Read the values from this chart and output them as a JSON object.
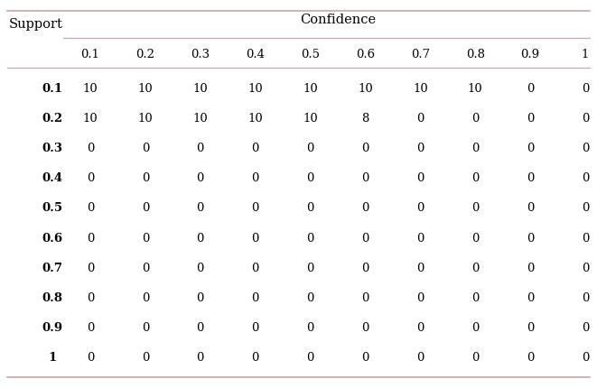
{
  "confidence_cols": [
    "0.1",
    "0.2",
    "0.3",
    "0.4",
    "0.5",
    "0.6",
    "0.7",
    "0.8",
    "0.9",
    "1"
  ],
  "support_rows": [
    "0.1",
    "0.2",
    "0.3",
    "0.4",
    "0.5",
    "0.6",
    "0.7",
    "0.8",
    "0.9",
    "1"
  ],
  "table_data": [
    [
      10,
      10,
      10,
      10,
      10,
      10,
      10,
      10,
      0,
      0
    ],
    [
      10,
      10,
      10,
      10,
      10,
      8,
      0,
      0,
      0,
      0
    ],
    [
      0,
      0,
      0,
      0,
      0,
      0,
      0,
      0,
      0,
      0
    ],
    [
      0,
      0,
      0,
      0,
      0,
      0,
      0,
      0,
      0,
      0
    ],
    [
      0,
      0,
      0,
      0,
      0,
      0,
      0,
      0,
      0,
      0
    ],
    [
      0,
      0,
      0,
      0,
      0,
      0,
      0,
      0,
      0,
      0
    ],
    [
      0,
      0,
      0,
      0,
      0,
      0,
      0,
      0,
      0,
      0
    ],
    [
      0,
      0,
      0,
      0,
      0,
      0,
      0,
      0,
      0,
      0
    ],
    [
      0,
      0,
      0,
      0,
      0,
      0,
      0,
      0,
      0,
      0
    ],
    [
      0,
      0,
      0,
      0,
      0,
      0,
      0,
      0,
      0,
      0
    ]
  ],
  "confidence_label": "Confidence",
  "support_label": "Support",
  "bg_color": "#ffffff",
  "line_color": "#c9a8a8",
  "text_color": "#000000",
  "cell_fontsize": 9.5,
  "label_fontsize": 10.5
}
